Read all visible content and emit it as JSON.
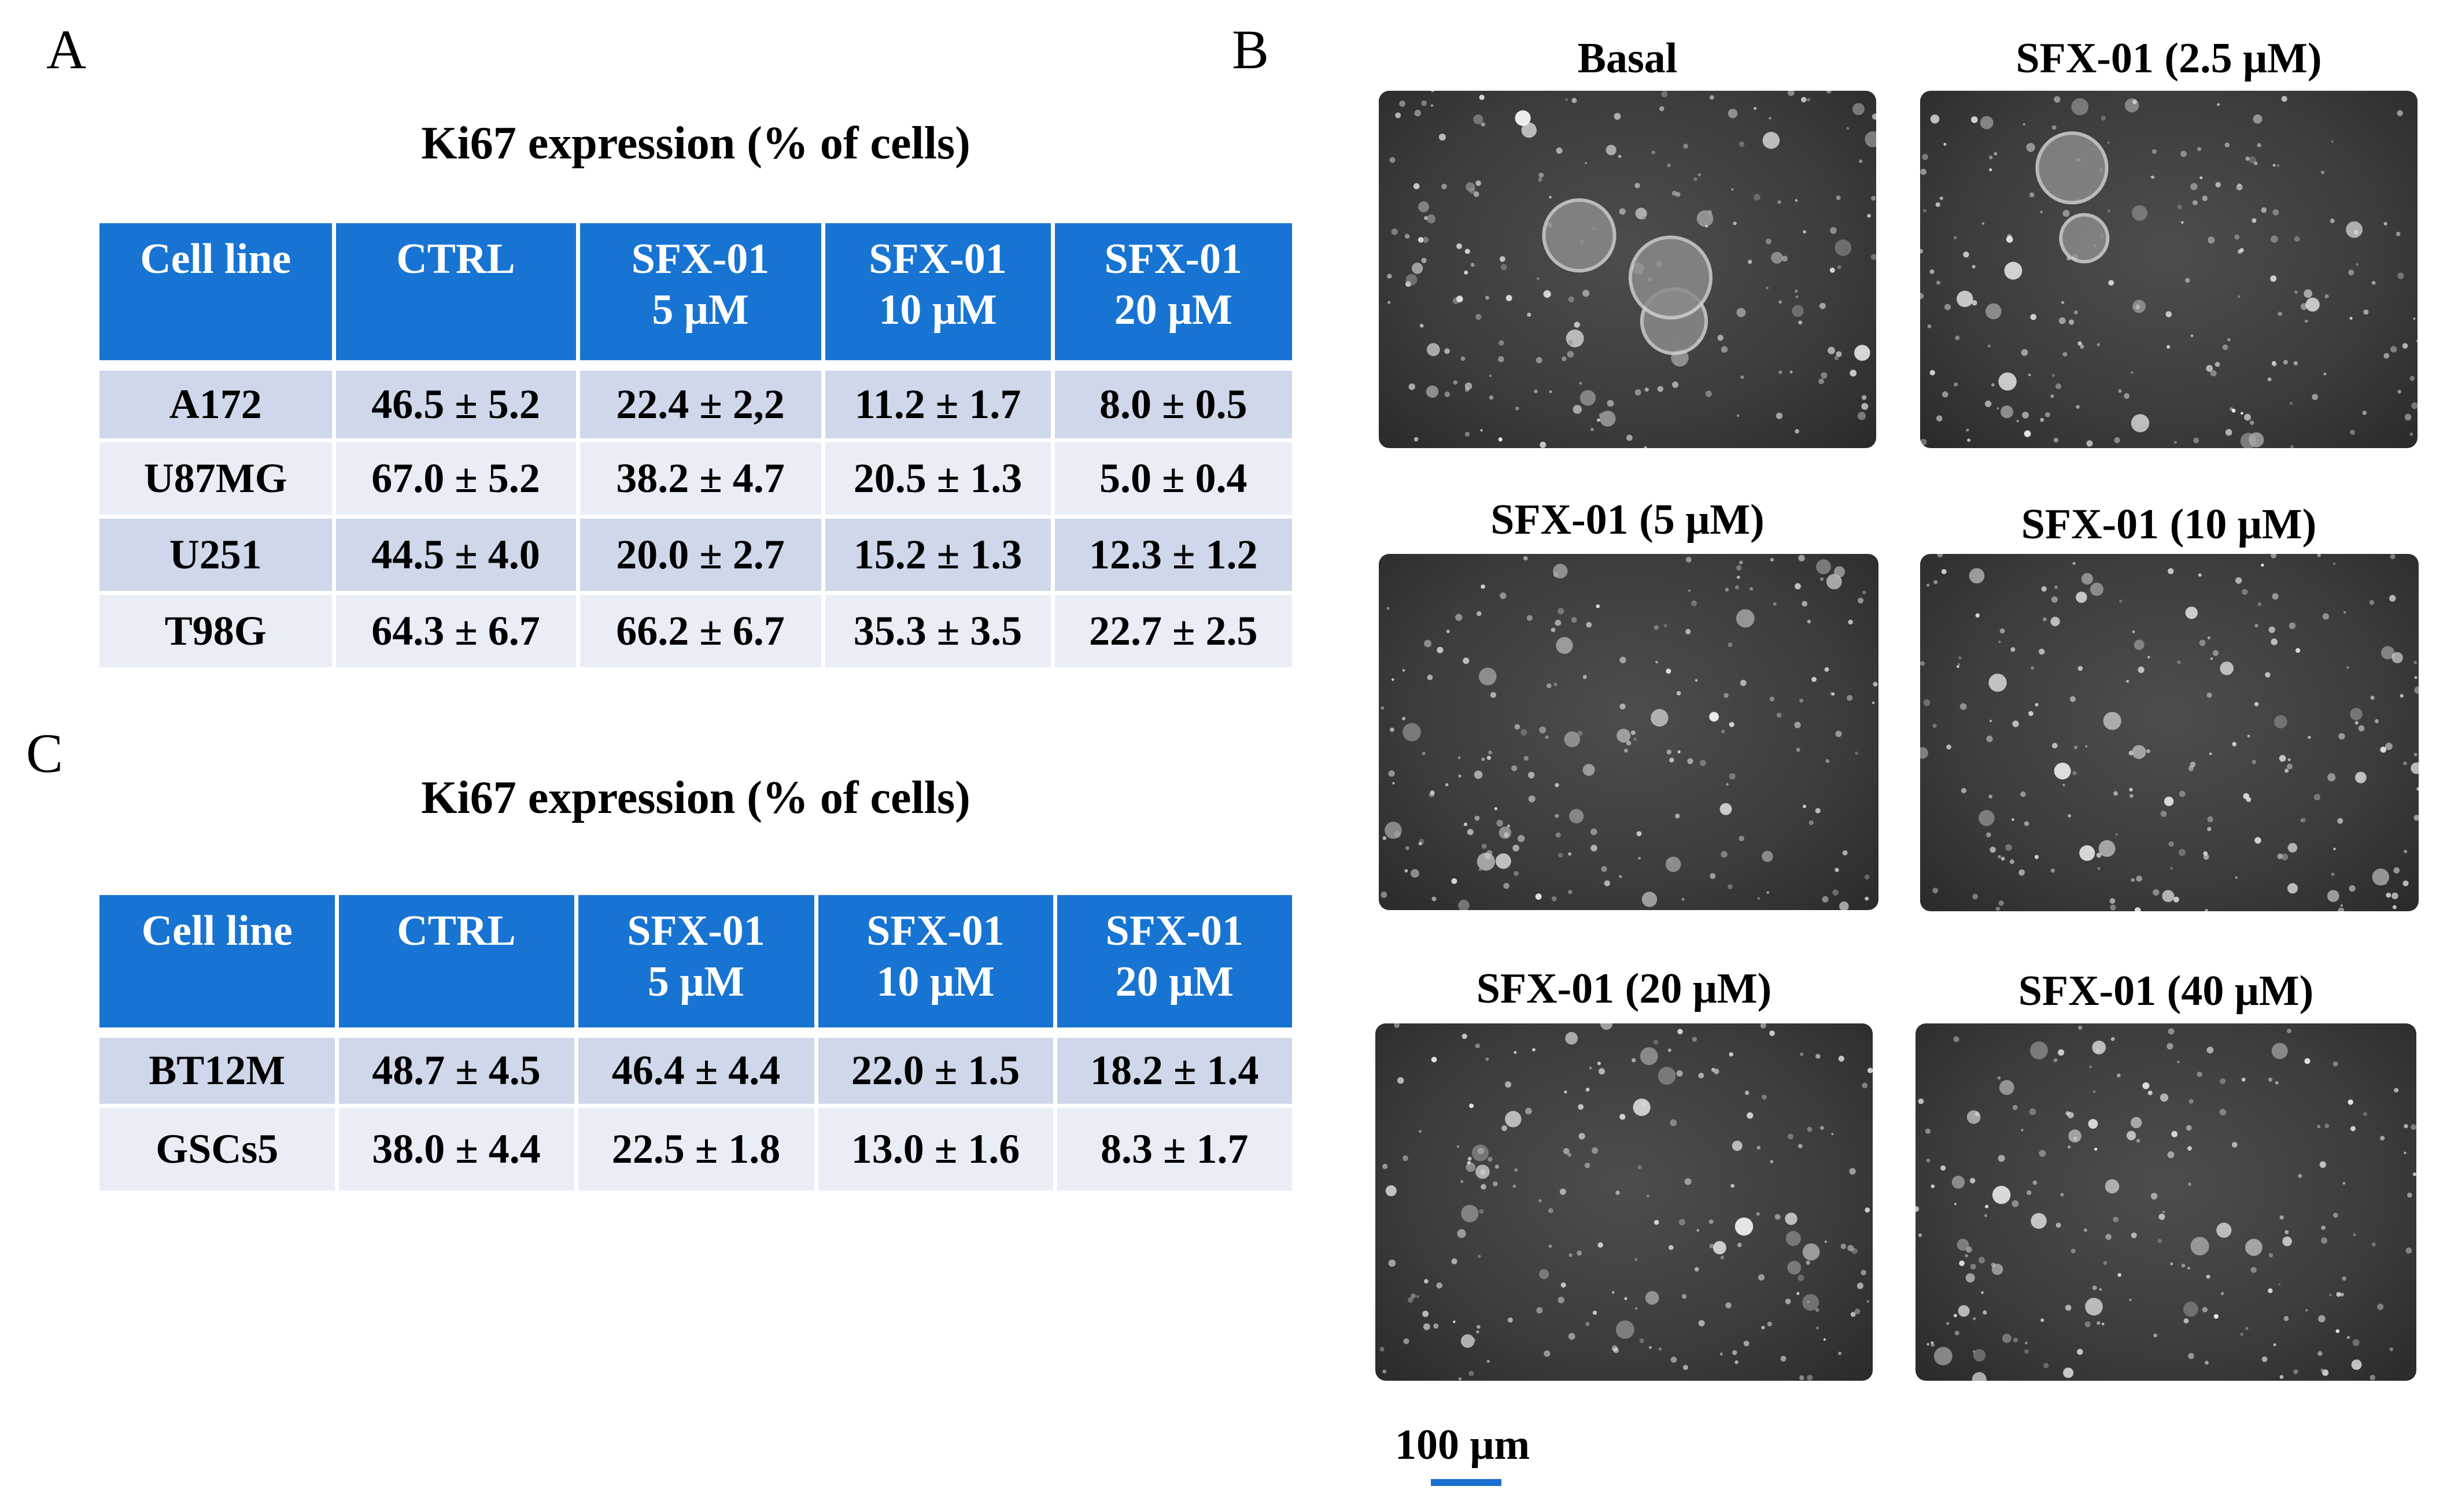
{
  "panel_labels": {
    "a": "A",
    "b": "B",
    "c": "C"
  },
  "table_a": {
    "title": "Ki67 expression (% of cells)",
    "headers": [
      [
        "Cell line"
      ],
      [
        "CTRL"
      ],
      [
        "SFX-01",
        "5 μM"
      ],
      [
        "SFX-01",
        "10 μM"
      ],
      [
        "SFX-01",
        "20 μM"
      ]
    ],
    "rows": [
      [
        "A172",
        "46.5 ± 5.2",
        "22.4 ± 2,2",
        "11.2 ± 1.7",
        "8.0 ± 0.5"
      ],
      [
        "U87MG",
        "67.0 ± 5.2",
        "38.2 ± 4.7",
        "20.5 ± 1.3",
        "5.0 ± 0.4"
      ],
      [
        "U251",
        "44.5 ± 4.0",
        "20.0 ± 2.7",
        "15.2 ± 1.3",
        "12.3 ± 1.2"
      ],
      [
        "T98G",
        "64.3 ± 6.7",
        "66.2 ± 6.7",
        "35.3 ± 3.5",
        "22.7 ± 2.5"
      ]
    ]
  },
  "table_c": {
    "title": "Ki67 expression (% of cells)",
    "headers": [
      [
        "Cell line"
      ],
      [
        "CTRL"
      ],
      [
        "SFX-01",
        "5 μM"
      ],
      [
        "SFX-01",
        "10 μM"
      ],
      [
        "SFX-01",
        "20 μM"
      ]
    ],
    "rows": [
      [
        "BT12M",
        "48.7 ± 4.5",
        "46.4 ± 4.4",
        "22.0 ± 1.5",
        "18.2 ± 1.4"
      ],
      [
        "GSCs5",
        "38.0 ± 4.4",
        "22.5 ± 1.8",
        "13.0 ± 1.6",
        "8.3 ± 1.7"
      ]
    ]
  },
  "micrographs": [
    {
      "label": "Basal"
    },
    {
      "label": "SFX-01 (2.5 μM)"
    },
    {
      "label": "SFX-01 (5 μM)"
    },
    {
      "label": "SFX-01 (10 μM)"
    },
    {
      "label": "SFX-01 (20 μM)"
    },
    {
      "label": "SFX-01 (40 μM)"
    }
  ],
  "scale_bar": {
    "label": "100 μm",
    "color": "#1a6fd0"
  },
  "colors": {
    "header_bg": "#1874d2",
    "row_odd": "#cfd7ea",
    "row_even": "#e9edf6"
  }
}
